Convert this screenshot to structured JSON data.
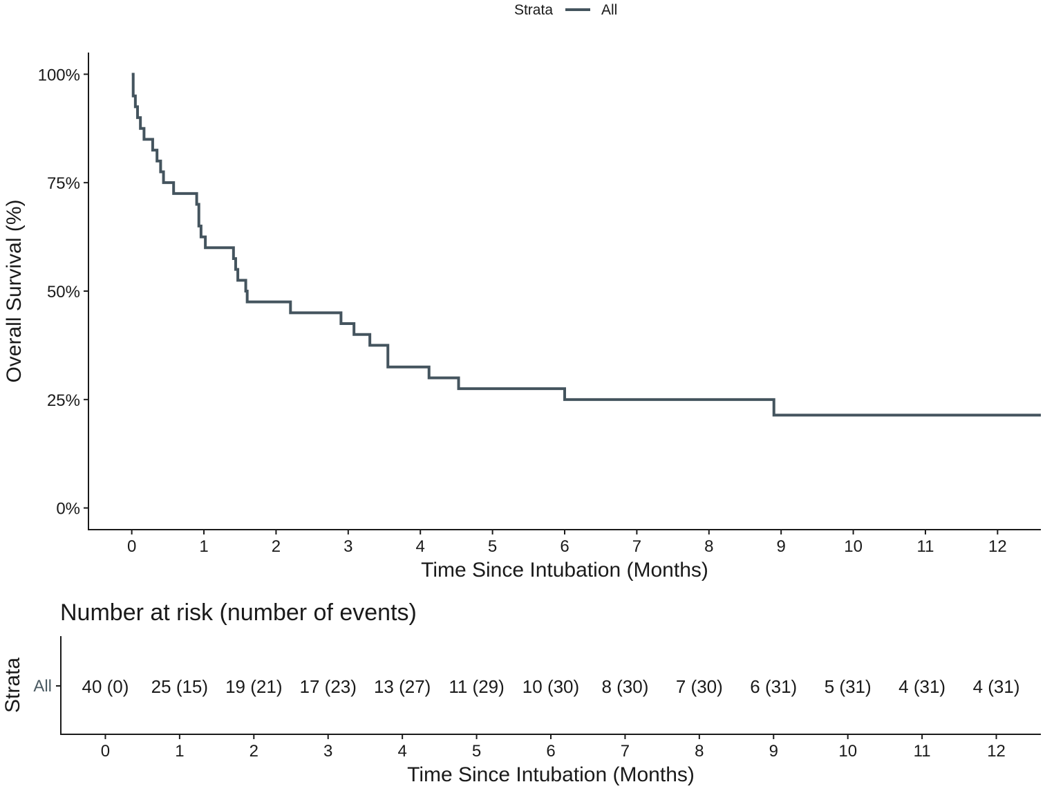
{
  "legend": {
    "title": "Strata",
    "entry": "All",
    "color": "#44545e"
  },
  "chart_data": {
    "type": "line",
    "title": "",
    "xlabel": "Time Since Intubation (Months)",
    "ylabel": "Overall Survival (%)",
    "xlim": [
      -0.6,
      12.6
    ],
    "ylim": [
      -0.05,
      1.05
    ],
    "x_ticks": [
      0,
      1,
      2,
      3,
      4,
      5,
      6,
      7,
      8,
      9,
      10,
      11,
      12
    ],
    "x_tick_labels": [
      "0",
      "1",
      "2",
      "3",
      "4",
      "5",
      "6",
      "7",
      "8",
      "9",
      "10",
      "11",
      "12"
    ],
    "y_ticks": [
      0,
      0.25,
      0.5,
      0.75,
      1.0
    ],
    "y_tick_labels": [
      "0%",
      "25%",
      "50%",
      "75%",
      "100%"
    ],
    "series": [
      {
        "name": "All",
        "color": "#44545e",
        "step": true,
        "x": [
          0,
          0.02,
          0.05,
          0.08,
          0.12,
          0.17,
          0.2,
          0.29,
          0.35,
          0.4,
          0.44,
          0.47,
          0.58,
          0.9,
          0.93,
          0.96,
          1.02,
          1.08,
          1.41,
          1.44,
          1.47,
          1.5,
          1.58,
          1.6,
          1.62,
          2.2,
          2.9,
          3.08,
          3.3,
          3.55,
          4.12,
          4.53,
          6.0,
          8.9,
          12.6
        ],
        "y": [
          1.0,
          0.95,
          0.925,
          0.9,
          0.875,
          0.85,
          0.85,
          0.825,
          0.8,
          0.775,
          0.75,
          0.75,
          0.725,
          0.7,
          0.65,
          0.625,
          0.6,
          0.6,
          0.575,
          0.55,
          0.525,
          0.525,
          0.5,
          0.475,
          0.475,
          0.45,
          0.425,
          0.4,
          0.375,
          0.325,
          0.3,
          0.275,
          0.25,
          0.214,
          0.214
        ]
      }
    ]
  },
  "risk_table": {
    "title": "Number at risk (number of events)",
    "ylabel": "Strata",
    "row_label": "All",
    "xlabel": "Time Since Intubation (Months)",
    "x_ticks": [
      0,
      1,
      2,
      3,
      4,
      5,
      6,
      7,
      8,
      9,
      10,
      11,
      12
    ],
    "x_tick_labels": [
      "0",
      "1",
      "2",
      "3",
      "4",
      "5",
      "6",
      "7",
      "8",
      "9",
      "10",
      "11",
      "12"
    ],
    "cells": [
      "40 (0)",
      "25 (15)",
      "19 (21)",
      "17 (23)",
      "13 (27)",
      "11 (29)",
      "10 (30)",
      "8 (30)",
      "7 (30)",
      "6 (31)",
      "5 (31)",
      "4 (31)",
      "4 (31)"
    ]
  }
}
